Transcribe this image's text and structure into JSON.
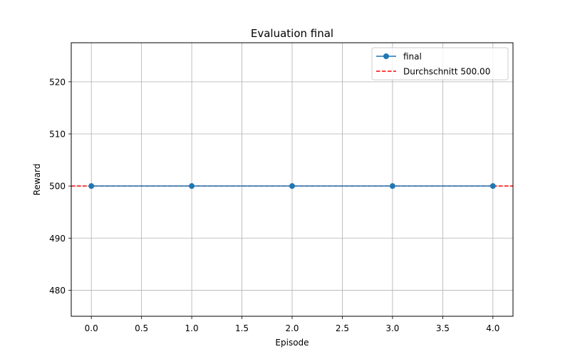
{
  "chart_data": {
    "type": "line",
    "title": "Evaluation final",
    "xlabel": "Episode",
    "ylabel": "Reward",
    "xlim": [
      -0.2,
      4.2
    ],
    "ylim": [
      475,
      527.5
    ],
    "xticks": [
      0.0,
      0.5,
      1.0,
      1.5,
      2.0,
      2.5,
      3.0,
      3.5,
      4.0
    ],
    "xtick_labels": [
      "0.0",
      "0.5",
      "1.0",
      "1.5",
      "2.0",
      "2.5",
      "3.0",
      "3.5",
      "4.0"
    ],
    "yticks": [
      480,
      490,
      500,
      510,
      520
    ],
    "ytick_labels": [
      "480",
      "490",
      "500",
      "510",
      "520"
    ],
    "grid": true,
    "legend_position": "top-right",
    "series": [
      {
        "name": "final",
        "x": [
          0,
          1,
          2,
          3,
          4
        ],
        "y": [
          500,
          500,
          500,
          500,
          500
        ],
        "color": "#1f77b4",
        "style": "line-marker"
      }
    ],
    "reference_lines": [
      {
        "name": "Durchschnitt 500.00",
        "y": 500.0,
        "color": "#ff0000",
        "style": "dashed"
      }
    ]
  }
}
